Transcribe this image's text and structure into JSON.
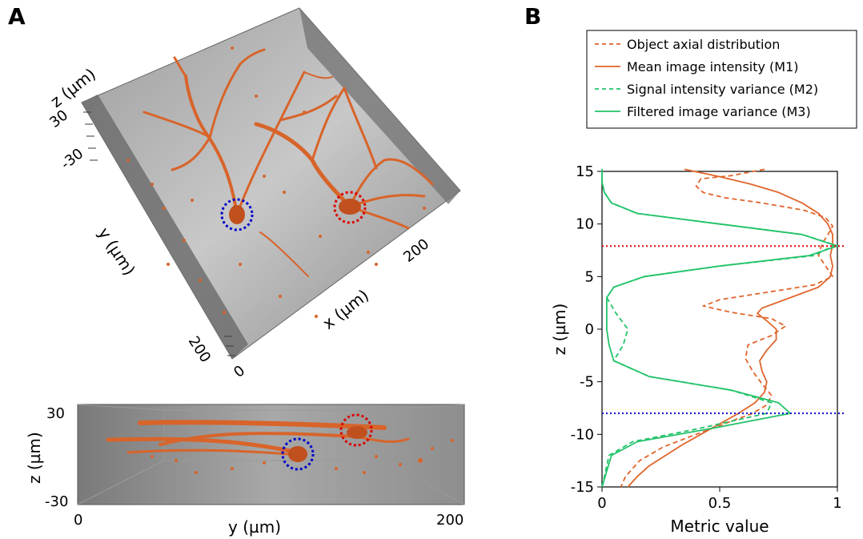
{
  "panels": {
    "a": {
      "letter": "A",
      "top_view": {
        "z_axis_label": "z (µm)",
        "z_ticks": [
          "30",
          "-30"
        ],
        "y_axis_label": "y (µm)",
        "x_axis_label": "x (µm)",
        "x_ticks": [
          "0",
          "200"
        ],
        "y_ticks": [
          "200"
        ]
      },
      "side_view": {
        "z_axis_label": "z (µm)",
        "z_ticks": [
          "30",
          "-30"
        ],
        "y_axis_label": "y (µm)",
        "y_ticks": [
          "0",
          "200"
        ]
      },
      "markers": {
        "blue_color": "#0000cc",
        "red_color": "#dd0000"
      },
      "colors": {
        "neuron": "#d8642a",
        "box_face": "#8c8c8c",
        "box_edge": "#555555"
      }
    },
    "b": {
      "letter": "B"
    }
  },
  "chart_data": {
    "type": "line",
    "xlabel": "Metric value",
    "ylabel": "z (µm)",
    "xlim": [
      0,
      1
    ],
    "ylim": [
      -15,
      15
    ],
    "xticks": [
      "0",
      "0.5",
      "1"
    ],
    "yticks": [
      "15",
      "10",
      "5",
      "0",
      "-5",
      "-10",
      "-15"
    ],
    "legend_position": "top",
    "series": [
      {
        "name": "Object axial distribution",
        "color": "#e0652b",
        "dash": "dashed",
        "points": [
          [
            0.69,
            15.2
          ],
          [
            0.55,
            14.6
          ],
          [
            0.42,
            14.3
          ],
          [
            0.4,
            13.6
          ],
          [
            0.43,
            13.0
          ],
          [
            0.52,
            12.5
          ],
          [
            0.68,
            12.0
          ],
          [
            0.86,
            11.3
          ],
          [
            0.95,
            10.6
          ],
          [
            0.98,
            9.8
          ],
          [
            0.96,
            9.0
          ],
          [
            0.94,
            8.3
          ],
          [
            0.93,
            7.8
          ],
          [
            0.92,
            7.0
          ],
          [
            0.95,
            6.0
          ],
          [
            0.98,
            5.0
          ],
          [
            0.9,
            4.2
          ],
          [
            0.7,
            3.5
          ],
          [
            0.5,
            2.8
          ],
          [
            0.43,
            2.2
          ],
          [
            0.55,
            1.6
          ],
          [
            0.72,
            1.0
          ],
          [
            0.78,
            0.3
          ],
          [
            0.72,
            -0.6
          ],
          [
            0.62,
            -1.5
          ],
          [
            0.61,
            -2.8
          ],
          [
            0.64,
            -4.0
          ],
          [
            0.68,
            -5.2
          ],
          [
            0.72,
            -6.3
          ],
          [
            0.7,
            -7.2
          ],
          [
            0.64,
            -8.0
          ],
          [
            0.52,
            -9.0
          ],
          [
            0.4,
            -10.0
          ],
          [
            0.26,
            -11.2
          ],
          [
            0.16,
            -12.5
          ],
          [
            0.1,
            -14.0
          ],
          [
            0.08,
            -15.0
          ]
        ]
      },
      {
        "name": "Mean image intensity (M1)",
        "color": "#e0652b",
        "dash": "solid",
        "points": [
          [
            0.35,
            15.2
          ],
          [
            0.5,
            14.5
          ],
          [
            0.63,
            13.8
          ],
          [
            0.75,
            13.0
          ],
          [
            0.85,
            12.0
          ],
          [
            0.92,
            11.0
          ],
          [
            0.96,
            10.0
          ],
          [
            0.98,
            9.0
          ],
          [
            0.98,
            8.0
          ],
          [
            0.97,
            7.0
          ],
          [
            0.98,
            6.0
          ],
          [
            0.97,
            5.0
          ],
          [
            0.92,
            4.0
          ],
          [
            0.8,
            3.0
          ],
          [
            0.68,
            2.0
          ],
          [
            0.66,
            1.5
          ],
          [
            0.7,
            0.8
          ],
          [
            0.74,
            0.0
          ],
          [
            0.74,
            -1.0
          ],
          [
            0.7,
            -2.0
          ],
          [
            0.67,
            -3.0
          ],
          [
            0.68,
            -4.0
          ],
          [
            0.7,
            -5.0
          ],
          [
            0.69,
            -6.0
          ],
          [
            0.65,
            -7.0
          ],
          [
            0.58,
            -8.0
          ],
          [
            0.5,
            -9.0
          ],
          [
            0.42,
            -10.0
          ],
          [
            0.34,
            -11.0
          ],
          [
            0.27,
            -12.0
          ],
          [
            0.2,
            -13.0
          ],
          [
            0.15,
            -14.0
          ],
          [
            0.11,
            -15.0
          ]
        ]
      },
      {
        "name": "Signal intensity variance (M2)",
        "color": "#22c36a",
        "dash": "dashed",
        "points": [
          [
            0.0,
            15.2
          ],
          [
            0.0,
            14.0
          ],
          [
            0.01,
            13.0
          ],
          [
            0.04,
            12.0
          ],
          [
            0.15,
            11.0
          ],
          [
            0.5,
            10.0
          ],
          [
            0.85,
            9.0
          ],
          [
            0.99,
            8.0
          ],
          [
            0.9,
            7.0
          ],
          [
            0.5,
            6.0
          ],
          [
            0.18,
            5.0
          ],
          [
            0.05,
            4.0
          ],
          [
            0.02,
            3.0
          ],
          [
            0.06,
            1.5
          ],
          [
            0.11,
            0.0
          ],
          [
            0.09,
            -1.5
          ],
          [
            0.05,
            -3.0
          ],
          [
            0.2,
            -4.5
          ],
          [
            0.55,
            -5.8
          ],
          [
            0.72,
            -7.0
          ],
          [
            0.7,
            -8.0
          ],
          [
            0.4,
            -9.5
          ],
          [
            0.13,
            -10.7
          ],
          [
            0.03,
            -12.0
          ],
          [
            0.0,
            -15.0
          ]
        ]
      },
      {
        "name": "Filtered image variance (M3)",
        "color": "#22c36a",
        "dash": "solid",
        "points": [
          [
            0.0,
            15.2
          ],
          [
            0.0,
            14.0
          ],
          [
            0.01,
            13.0
          ],
          [
            0.04,
            12.0
          ],
          [
            0.15,
            11.0
          ],
          [
            0.5,
            10.0
          ],
          [
            0.85,
            9.0
          ],
          [
            1.0,
            7.9
          ],
          [
            0.88,
            7.0
          ],
          [
            0.5,
            6.0
          ],
          [
            0.18,
            5.0
          ],
          [
            0.05,
            4.0
          ],
          [
            0.02,
            3.0
          ],
          [
            0.02,
            1.5
          ],
          [
            0.02,
            0.0
          ],
          [
            0.03,
            -1.5
          ],
          [
            0.05,
            -3.0
          ],
          [
            0.2,
            -4.5
          ],
          [
            0.55,
            -5.8
          ],
          [
            0.75,
            -7.0
          ],
          [
            0.8,
            -8.0
          ],
          [
            0.45,
            -9.5
          ],
          [
            0.15,
            -10.7
          ],
          [
            0.04,
            -12.0
          ],
          [
            0.0,
            -15.0
          ]
        ]
      }
    ],
    "hlines": [
      {
        "y": 7.9,
        "color": "#e41a1c"
      },
      {
        "y": -8.0,
        "color": "#1a1acc"
      }
    ]
  }
}
